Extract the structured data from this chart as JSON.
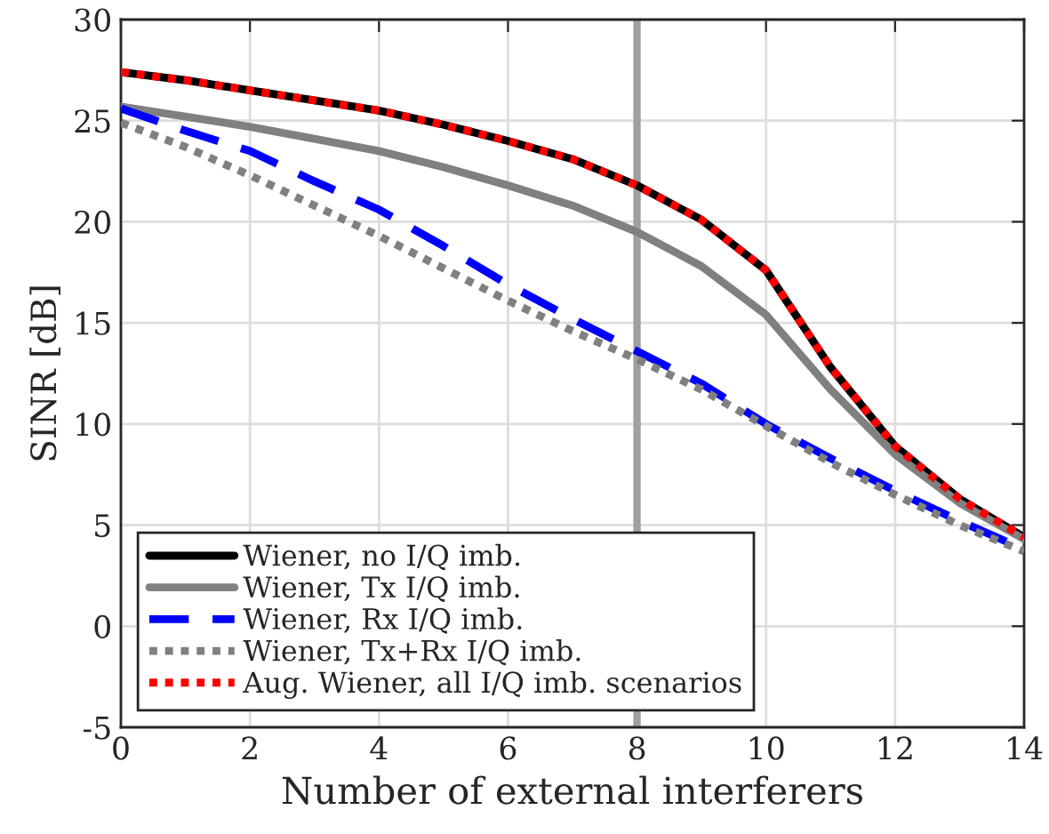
{
  "chart_data": {
    "type": "line",
    "xlabel": "Number of external interferers",
    "ylabel": "SINR [dB]",
    "x": [
      0,
      1,
      2,
      3,
      4,
      5,
      6,
      7,
      8,
      9,
      10,
      11,
      12,
      13,
      14
    ],
    "series": [
      {
        "name": "Wiener, no I/Q imb.",
        "color": "#000000",
        "line_style": "solid",
        "values": [
          27.4,
          27.0,
          26.5,
          26.0,
          25.5,
          24.8,
          24.0,
          23.1,
          21.8,
          20.1,
          17.6,
          12.8,
          8.9,
          6.3,
          4.4
        ]
      },
      {
        "name": "Wiener, Tx I/Q imb.",
        "color": "#808080",
        "line_style": "solid",
        "values": [
          25.7,
          25.2,
          24.7,
          24.1,
          23.5,
          22.7,
          21.8,
          20.8,
          19.5,
          17.8,
          15.4,
          11.7,
          8.5,
          6.1,
          4.3
        ]
      },
      {
        "name": "Wiener, Rx I/Q imb.",
        "color": "#0000ff",
        "line_style": "dashed",
        "values": [
          25.6,
          24.5,
          23.5,
          22.0,
          20.6,
          18.8,
          16.9,
          15.2,
          13.6,
          12.0,
          10.0,
          8.3,
          6.7,
          5.2,
          3.8
        ]
      },
      {
        "name": "Wiener, Tx+Rx I/Q imb.",
        "color": "#808080",
        "line_style": "dotted",
        "values": [
          24.9,
          23.7,
          22.3,
          20.8,
          19.3,
          17.7,
          16.1,
          14.6,
          13.2,
          11.7,
          9.9,
          8.1,
          6.5,
          5.0,
          3.7
        ]
      },
      {
        "name": "Aug. Wiener, all I/Q imb. scenarios",
        "color": "#ff0000",
        "line_style": "dotted",
        "values": [
          27.4,
          27.0,
          26.5,
          26.0,
          25.5,
          24.8,
          24.0,
          23.1,
          21.8,
          20.1,
          17.6,
          12.8,
          8.9,
          6.3,
          4.4
        ]
      }
    ],
    "xlim": [
      0,
      14
    ],
    "xticks": [
      0,
      2,
      4,
      6,
      8,
      10,
      12,
      14
    ],
    "ylim": [
      -5,
      30
    ],
    "yticks": [
      -5,
      0,
      5,
      10,
      15,
      20,
      25,
      30
    ],
    "ref_lines": [
      {
        "axis": "x",
        "value": 8,
        "color": "#a0a0a0"
      }
    ],
    "grid": true,
    "legend": "bottom left",
    "marker": "none"
  }
}
